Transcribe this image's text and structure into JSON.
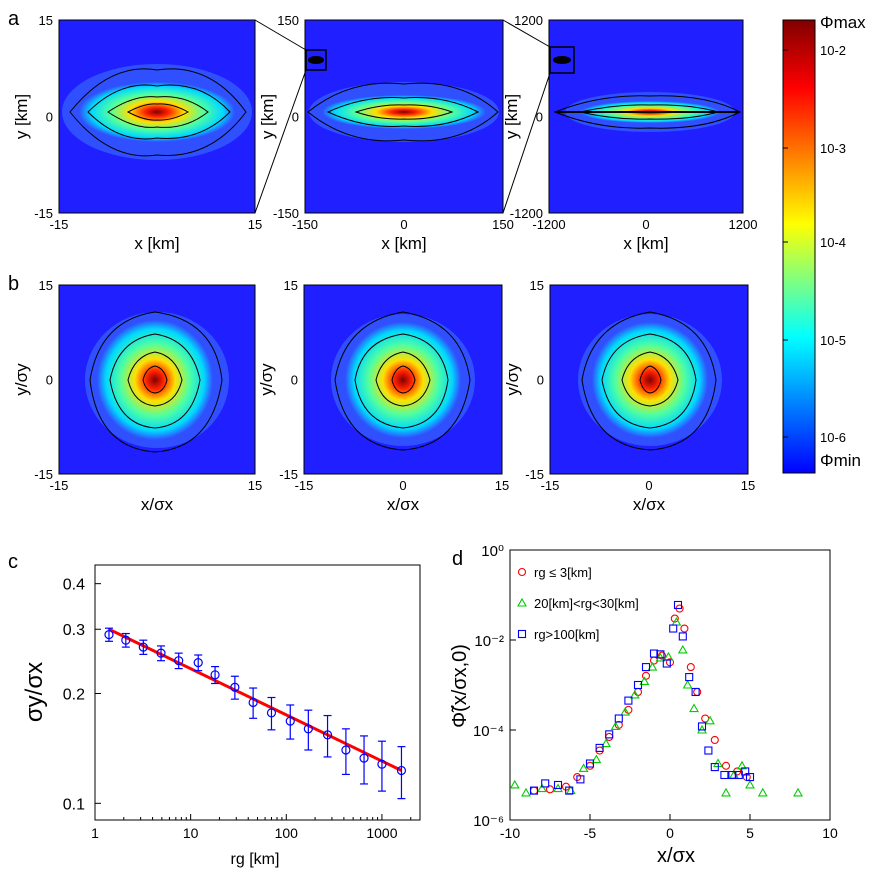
{
  "panels_a": {
    "letter": "a",
    "plots": [
      {
        "xlabel": "x [km]",
        "ylabel": "y [km]",
        "x_ticks": [
          "-15",
          "15"
        ],
        "y_ticks": [
          "15",
          "0",
          "-15"
        ],
        "range": 15
      },
      {
        "xlabel": "x [km]",
        "ylabel": "y [km]",
        "x_ticks": [
          "-150",
          "0",
          "150"
        ],
        "y_ticks": [
          "150",
          "0",
          "-150"
        ],
        "range": 150
      },
      {
        "xlabel": "x [km]",
        "ylabel": "y [km]",
        "x_ticks": [
          "-1200",
          "0",
          "1200"
        ],
        "y_ticks": [
          "1200",
          "0",
          "-1200"
        ],
        "range": 1200
      }
    ]
  },
  "panels_b": {
    "letter": "b",
    "plots": [
      {
        "xlabel": "x/σx",
        "ylabel": "y/σy",
        "x_ticks": [
          "-15",
          "15"
        ],
        "y_ticks": [
          "15",
          "0",
          "-15"
        ]
      },
      {
        "xlabel": "x/σx",
        "ylabel": "y/σy",
        "x_ticks": [
          "-15",
          "0",
          "15"
        ],
        "y_ticks": [
          "15",
          "0",
          "-15"
        ]
      },
      {
        "xlabel": "x/σx",
        "ylabel": "y/σy",
        "x_ticks": [
          "-15",
          "0",
          "15"
        ],
        "y_ticks": [
          "15",
          "0",
          "-15"
        ]
      }
    ]
  },
  "colorbar": {
    "top_label": "Φmax",
    "bottom_label": "Φmin",
    "ticks": [
      "10-2",
      "10-3",
      "10-4",
      "10-5",
      "10-6"
    ],
    "colors": [
      "#0000ff",
      "#00ffff",
      "#ffff00",
      "#ff0000",
      "#800000"
    ]
  },
  "chart_data": [
    {
      "panel": "c",
      "type": "scatter",
      "xscale": "log",
      "yscale": "log",
      "xlabel": "rg [km]",
      "ylabel": "σy/σx",
      "x_ticks": [
        "1",
        "10",
        "100",
        "1000"
      ],
      "y_ticks": [
        "0.4",
        "0.3",
        "0.2",
        "0.1"
      ],
      "xlim": [
        1,
        2500
      ],
      "ylim": [
        0.09,
        0.45
      ],
      "marker_color": "#0000ff",
      "points": [
        {
          "x": 1.4,
          "y": 0.29,
          "err": 0.012
        },
        {
          "x": 2.1,
          "y": 0.28,
          "err": 0.012
        },
        {
          "x": 3.2,
          "y": 0.268,
          "err": 0.012
        },
        {
          "x": 4.9,
          "y": 0.258,
          "err": 0.012
        },
        {
          "x": 7.5,
          "y": 0.246,
          "err": 0.012
        },
        {
          "x": 12,
          "y": 0.243,
          "err": 0.012
        },
        {
          "x": 18,
          "y": 0.225,
          "err": 0.012
        },
        {
          "x": 29,
          "y": 0.208,
          "err": 0.015
        },
        {
          "x": 45,
          "y": 0.189,
          "err": 0.018
        },
        {
          "x": 70,
          "y": 0.177,
          "err": 0.018
        },
        {
          "x": 110,
          "y": 0.168,
          "err": 0.018
        },
        {
          "x": 170,
          "y": 0.16,
          "err": 0.02
        },
        {
          "x": 270,
          "y": 0.154,
          "err": 0.02
        },
        {
          "x": 420,
          "y": 0.14,
          "err": 0.02
        },
        {
          "x": 650,
          "y": 0.133,
          "err": 0.02
        },
        {
          "x": 1000,
          "y": 0.128,
          "err": 0.02
        },
        {
          "x": 1600,
          "y": 0.123,
          "err": 0.02
        }
      ],
      "fit_line": {
        "color": "#ff0000",
        "x": [
          1.4,
          1600
        ],
        "y": [
          0.3,
          0.123
        ]
      }
    },
    {
      "panel": "d",
      "type": "scatter",
      "yscale": "log",
      "xlabel": "x/σx",
      "ylabel": "Φ̃(x/σx,0)",
      "x_ticks": [
        "-10",
        "-5",
        "0",
        "5",
        "10"
      ],
      "y_ticks": [
        "10⁰",
        "10⁻²",
        "10⁻⁴",
        "10⁻⁶"
      ],
      "xlim": [
        -10,
        10
      ],
      "ylim": [
        1e-06,
        1
      ],
      "legend_position": "top-left",
      "series": [
        {
          "name": "rg ≤ 3[km]",
          "marker": "circle",
          "color": "#ff0000",
          "x": [
            -8.5,
            -7.5,
            -6.5,
            -5.8,
            -5,
            -4.4,
            -3.8,
            -3.2,
            -2.6,
            -2,
            -1.5,
            -1,
            -0.5,
            0,
            0.3,
            0.6,
            0.9,
            1.3,
            1.7,
            2.2,
            2.8,
            3.5,
            4.2,
            4.8
          ],
          "y": [
            4.5e-06,
            4.8e-06,
            5.5e-06,
            9e-06,
            1.6e-05,
            3.5e-05,
            7e-05,
            0.00013,
            0.00028,
            0.0007,
            0.0016,
            0.0035,
            0.0045,
            0.0032,
            0.03,
            0.05,
            0.018,
            0.0025,
            0.0007,
            0.00018,
            6e-05,
            1.6e-05,
            1.2e-05,
            9e-06
          ]
        },
        {
          "name": "20[km]<rg<30[km]",
          "marker": "triangle",
          "color": "#00cc00",
          "x": [
            -9.7,
            -9,
            -8,
            -7,
            -6.2,
            -5.4,
            -4.6,
            -4,
            -3.4,
            -2.8,
            -2.2,
            -1.6,
            -1.1,
            -0.6,
            -0.1,
            0.4,
            0.8,
            1.1,
            1.5,
            2,
            2.5,
            3,
            3.5,
            4,
            4.5,
            5,
            5.8,
            8
          ],
          "y": [
            6e-06,
            4e-06,
            5e-06,
            5e-06,
            4.5e-06,
            1.4e-05,
            2.2e-05,
            5e-05,
            0.00012,
            0.00025,
            0.0006,
            0.0012,
            0.0025,
            0.004,
            0.0042,
            0.025,
            0.006,
            0.001,
            0.0003,
            0.0001,
            0.00016,
            1.8e-05,
            4e-06,
            1e-05,
            1.6e-05,
            6e-06,
            4e-06,
            4e-06
          ]
        },
        {
          "name": "rg>100[km]",
          "marker": "square",
          "color": "#0000ff",
          "x": [
            -8.5,
            -7.8,
            -7,
            -6.3,
            -5.6,
            -5,
            -4.4,
            -3.8,
            -3.2,
            -2.6,
            -2,
            -1.5,
            -1,
            -0.6,
            -0.2,
            0.2,
            0.5,
            0.8,
            1.2,
            1.6,
            2,
            2.4,
            2.8,
            3.4,
            3.9,
            4.3,
            4.7,
            5
          ],
          "y": [
            4.5e-06,
            6.5e-06,
            6e-06,
            4.5e-06,
            8e-06,
            1.8e-05,
            4e-05,
            8e-05,
            0.00018,
            0.00045,
            0.001,
            0.0025,
            0.005,
            0.0048,
            0.003,
            0.018,
            0.06,
            0.012,
            0.0015,
            0.0007,
            0.00012,
            3.5e-05,
            1.5e-05,
            1e-05,
            1e-05,
            1e-05,
            1.2e-05,
            9e-06
          ]
        }
      ]
    }
  ]
}
